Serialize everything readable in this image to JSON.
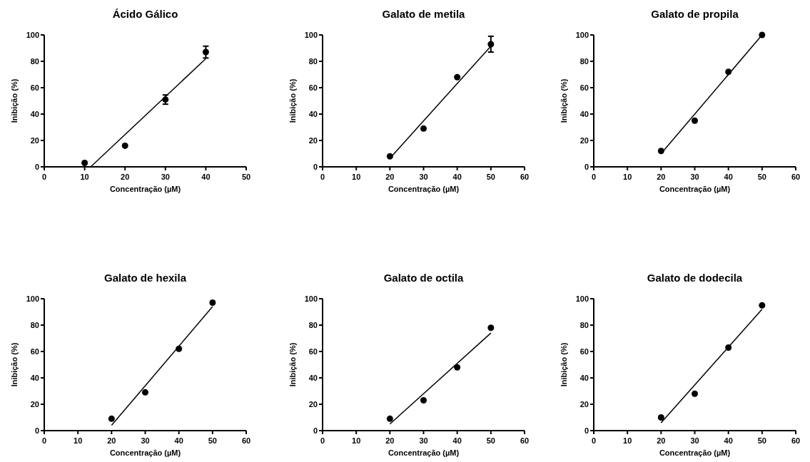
{
  "chart_data": [
    {
      "type": "scatter",
      "title": "Ácido Gálico",
      "xlabel": "Concentração (µM)",
      "ylabel": "Inibição (%)",
      "xlim": [
        0,
        50
      ],
      "xticks": [
        0,
        10,
        20,
        30,
        40,
        50
      ],
      "ylim": [
        0,
        100
      ],
      "yticks": [
        0,
        20,
        40,
        60,
        80,
        100
      ],
      "grid": false,
      "series": [
        {
          "type": "scatter",
          "color": "#000000",
          "marker": "circle",
          "x": [
            10,
            20,
            30,
            40
          ],
          "values": [
            3,
            16,
            51,
            87
          ],
          "errors": [
            null,
            null,
            3.5,
            4.5
          ]
        },
        {
          "type": "line",
          "color": "#000000",
          "x": [
            11.5,
            40
          ],
          "values": [
            0,
            82
          ]
        }
      ]
    },
    {
      "type": "scatter",
      "title": "Galato de metila",
      "xlabel": "Concentração (µM)",
      "ylabel": "Inibição (%)",
      "xlim": [
        0,
        60
      ],
      "xticks": [
        0,
        10,
        20,
        30,
        40,
        50,
        60
      ],
      "ylim": [
        0,
        100
      ],
      "yticks": [
        0,
        20,
        40,
        60,
        80,
        100
      ],
      "grid": false,
      "series": [
        {
          "type": "scatter",
          "color": "#000000",
          "marker": "circle",
          "x": [
            20,
            30,
            40,
            50
          ],
          "values": [
            8,
            29,
            68,
            93
          ],
          "errors": [
            null,
            null,
            null,
            6
          ]
        },
        {
          "type": "line",
          "color": "#000000",
          "x": [
            20,
            50
          ],
          "values": [
            6.5,
            91.5
          ]
        }
      ]
    },
    {
      "type": "scatter",
      "title": "Galato de propila",
      "xlabel": "Concentração (µM)",
      "ylabel": "Inibição (%)",
      "xlim": [
        0,
        60
      ],
      "xticks": [
        0,
        10,
        20,
        30,
        40,
        50,
        60
      ],
      "ylim": [
        0,
        100
      ],
      "yticks": [
        0,
        20,
        40,
        60,
        80,
        100
      ],
      "grid": false,
      "series": [
        {
          "type": "scatter",
          "color": "#000000",
          "marker": "circle",
          "x": [
            20,
            30,
            40,
            50
          ],
          "values": [
            12,
            35,
            72,
            100
          ]
        },
        {
          "type": "line",
          "color": "#000000",
          "x": [
            20,
            50
          ],
          "values": [
            10,
            100
          ]
        }
      ]
    },
    {
      "type": "scatter",
      "title": "Galato de hexila",
      "xlabel": "Concentração (µM)",
      "ylabel": "Inibição (%)",
      "xlim": [
        0,
        60
      ],
      "xticks": [
        0,
        10,
        20,
        30,
        40,
        50,
        60
      ],
      "ylim": [
        0,
        100
      ],
      "yticks": [
        0,
        20,
        40,
        60,
        80,
        100
      ],
      "grid": false,
      "series": [
        {
          "type": "scatter",
          "color": "#000000",
          "marker": "circle",
          "x": [
            20,
            30,
            40,
            50
          ],
          "values": [
            9,
            29,
            62,
            97
          ]
        },
        {
          "type": "line",
          "color": "#000000",
          "x": [
            20,
            50
          ],
          "values": [
            4,
            94
          ]
        }
      ]
    },
    {
      "type": "scatter",
      "title": "Galato de octila",
      "xlabel": "Concentração (µM)",
      "ylabel": "Inibição (%)",
      "xlim": [
        0,
        60
      ],
      "xticks": [
        0,
        10,
        20,
        30,
        40,
        50,
        60
      ],
      "ylim": [
        0,
        100
      ],
      "yticks": [
        0,
        20,
        40,
        60,
        80,
        100
      ],
      "grid": false,
      "series": [
        {
          "type": "scatter",
          "color": "#000000",
          "marker": "circle",
          "x": [
            20,
            30,
            40,
            50
          ],
          "values": [
            9,
            23,
            48,
            78
          ]
        },
        {
          "type": "line",
          "color": "#000000",
          "x": [
            20,
            50
          ],
          "values": [
            5,
            74
          ]
        }
      ]
    },
    {
      "type": "scatter",
      "title": "Galato de dodecila",
      "xlabel": "Concentração (µM)",
      "ylabel": "Inibição (%)",
      "xlim": [
        0,
        60
      ],
      "xticks": [
        0,
        10,
        20,
        30,
        40,
        50,
        60
      ],
      "ylim": [
        0,
        100
      ],
      "yticks": [
        0,
        20,
        40,
        60,
        80,
        100
      ],
      "grid": false,
      "series": [
        {
          "type": "scatter",
          "color": "#000000",
          "marker": "circle",
          "x": [
            20,
            30,
            40,
            50
          ],
          "values": [
            10,
            28,
            63,
            95
          ]
        },
        {
          "type": "line",
          "color": "#000000",
          "x": [
            20,
            50
          ],
          "values": [
            6,
            92
          ]
        }
      ]
    }
  ]
}
